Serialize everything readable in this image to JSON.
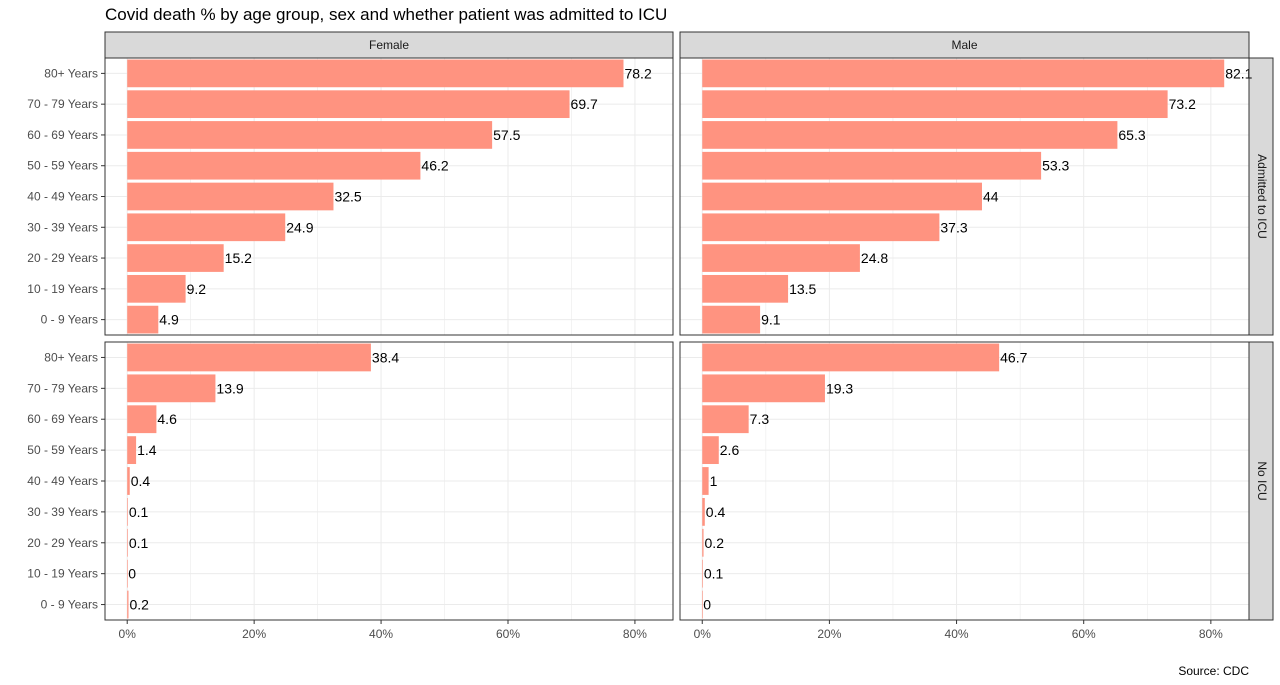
{
  "title": "Covid death % by age group, sex and whether patient was admitted to ICU",
  "source": "Source: CDC",
  "colors": {
    "bar": "#ff9380",
    "strip_fill": "#d9d9d9",
    "grid": "#ebebeb",
    "panel_border": "#333333"
  },
  "chart_data": {
    "type": "bar",
    "orientation": "horizontal",
    "facet_columns": [
      "Female",
      "Male"
    ],
    "facet_rows": [
      "Admitted to ICU",
      "No ICU"
    ],
    "categories": [
      "80+ Years",
      "70 - 79 Years",
      "60 - 69 Years",
      "50 - 59 Years",
      "40 - 49 Years",
      "30 - 39 Years",
      "20 - 29 Years",
      "10 - 19 Years",
      "0 - 9 Years"
    ],
    "x_ticks": [
      "0%",
      "20%",
      "40%",
      "60%",
      "80%"
    ],
    "x_tick_values": [
      0,
      20,
      40,
      60,
      80
    ],
    "xlim": [
      -3.5,
      86
    ],
    "grid": true,
    "panels": [
      {
        "sex": "Female",
        "icu": "Admitted to ICU",
        "values": [
          78.2,
          69.7,
          57.5,
          46.2,
          32.5,
          24.9,
          15.2,
          9.2,
          4.9
        ],
        "labels": [
          "78.2",
          "69.7",
          "57.5",
          "46.2",
          "32.5",
          "24.9",
          "15.2",
          "9.2",
          "4.9"
        ]
      },
      {
        "sex": "Male",
        "icu": "Admitted to ICU",
        "values": [
          82.1,
          73.2,
          65.3,
          53.3,
          44,
          37.3,
          24.8,
          13.5,
          9.1
        ],
        "labels": [
          "82.1",
          "73.2",
          "65.3",
          "53.3",
          "44",
          "37.3",
          "24.8",
          "13.5",
          "9.1"
        ]
      },
      {
        "sex": "Female",
        "icu": "No ICU",
        "values": [
          38.4,
          13.9,
          4.6,
          1.4,
          0.4,
          0.1,
          0.1,
          0,
          0.2
        ],
        "labels": [
          "38.4",
          "13.9",
          "4.6",
          "1.4",
          "0.4",
          "0.1",
          "0.1",
          "0",
          "0.2"
        ]
      },
      {
        "sex": "Male",
        "icu": "No ICU",
        "values": [
          46.7,
          19.3,
          7.3,
          2.6,
          1,
          0.4,
          0.2,
          0.1,
          0
        ],
        "labels": [
          "46.7",
          "19.3",
          "7.3",
          "2.6",
          "1",
          "0.4",
          "0.2",
          "0.1",
          "0"
        ]
      }
    ]
  }
}
